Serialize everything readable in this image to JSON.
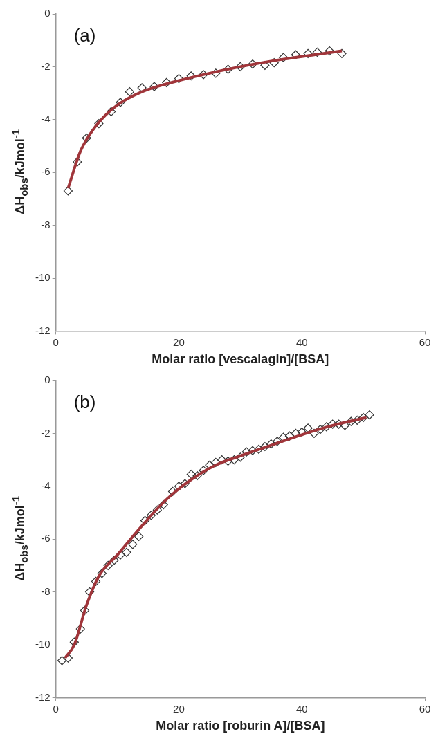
{
  "chart_data": [
    {
      "type": "scatter",
      "annotations": [
        "(a)"
      ],
      "xlabel": "Molar ratio [vescalagin]/[BSA]",
      "ylabel": "ΔH$_{obs}$/kJmol$^{-1}$",
      "xlim": [
        0,
        60
      ],
      "xticks": [
        0,
        20,
        40,
        60
      ],
      "ylim": [
        -12,
        0
      ],
      "yticks": [
        -12,
        -10,
        -8,
        -6,
        -4,
        -2,
        0
      ],
      "grid": false,
      "legend": false,
      "series": [
        {
          "type": "scatter",
          "marker": "diamond",
          "color": "#333333",
          "x": [
            2,
            3.5,
            5,
            7,
            9,
            10.5,
            12,
            14,
            16,
            18,
            20,
            22,
            24,
            26,
            28,
            30,
            32,
            34,
            35.5,
            37,
            39,
            41,
            42.5,
            44.5,
            46.5
          ],
          "values": [
            -6.7,
            -5.6,
            -4.7,
            -4.15,
            -3.7,
            -3.35,
            -2.95,
            -2.8,
            -2.75,
            -2.6,
            -2.45,
            -2.35,
            -2.3,
            -2.25,
            -2.1,
            -2.0,
            -1.9,
            -1.95,
            -1.85,
            -1.65,
            -1.55,
            -1.5,
            -1.45,
            -1.4,
            -1.5
          ]
        },
        {
          "type": "line",
          "marker": "none",
          "color": "#a0353a",
          "x": [
            2,
            4,
            6,
            8,
            10,
            14,
            18,
            24,
            30,
            36,
            42,
            46.5
          ],
          "values": [
            -6.6,
            -5.2,
            -4.4,
            -3.85,
            -3.45,
            -2.95,
            -2.65,
            -2.3,
            -2.0,
            -1.75,
            -1.55,
            -1.4
          ]
        }
      ]
    },
    {
      "type": "scatter",
      "annotations": [
        "(b)"
      ],
      "xlabel": "Molar ratio [roburin A]/[BSA]",
      "ylabel": "ΔH$_{obs}$/kJmol$^{-1}$",
      "xlim": [
        0,
        60
      ],
      "xticks": [
        0,
        20,
        40,
        60
      ],
      "ylim": [
        -12,
        0
      ],
      "yticks": [
        -12,
        -10,
        -8,
        -6,
        -4,
        -2,
        0
      ],
      "grid": false,
      "legend": false,
      "series": [
        {
          "type": "scatter",
          "marker": "diamond",
          "color": "#333333",
          "x": [
            1,
            2,
            3,
            4,
            4.7,
            5.5,
            6.5,
            7.5,
            8.5,
            9.5,
            10.5,
            11.5,
            12.5,
            13.5,
            14.5,
            15.5,
            16.5,
            17.5,
            19,
            20,
            21,
            22,
            23,
            24,
            25,
            26,
            27,
            28,
            29,
            30,
            31,
            32,
            33,
            34,
            35,
            36,
            37,
            38,
            39,
            40,
            41,
            42,
            43,
            44,
            45,
            46,
            47,
            48,
            49,
            50,
            51
          ],
          "values": [
            -10.6,
            -10.5,
            -9.9,
            -9.4,
            -8.7,
            -8.0,
            -7.6,
            -7.3,
            -7.0,
            -6.8,
            -6.6,
            -6.5,
            -6.2,
            -5.9,
            -5.3,
            -5.1,
            -4.9,
            -4.7,
            -4.2,
            -4.0,
            -3.9,
            -3.55,
            -3.6,
            -3.4,
            -3.2,
            -3.1,
            -3.0,
            -3.05,
            -3.0,
            -2.9,
            -2.7,
            -2.65,
            -2.6,
            -2.5,
            -2.4,
            -2.3,
            -2.15,
            -2.1,
            -2.0,
            -1.95,
            -1.8,
            -2.0,
            -1.85,
            -1.75,
            -1.65,
            -1.65,
            -1.7,
            -1.55,
            -1.5,
            -1.4,
            -1.3
          ]
        },
        {
          "type": "line",
          "marker": "none",
          "color": "#a0353a",
          "x": [
            1.5,
            3,
            5,
            7,
            10,
            14,
            18,
            22,
            26,
            30,
            35,
            40,
            45,
            50.5
          ],
          "values": [
            -10.5,
            -10.0,
            -8.5,
            -7.4,
            -6.6,
            -5.5,
            -4.5,
            -3.75,
            -3.2,
            -2.85,
            -2.45,
            -2.05,
            -1.7,
            -1.4
          ]
        }
      ]
    }
  ]
}
